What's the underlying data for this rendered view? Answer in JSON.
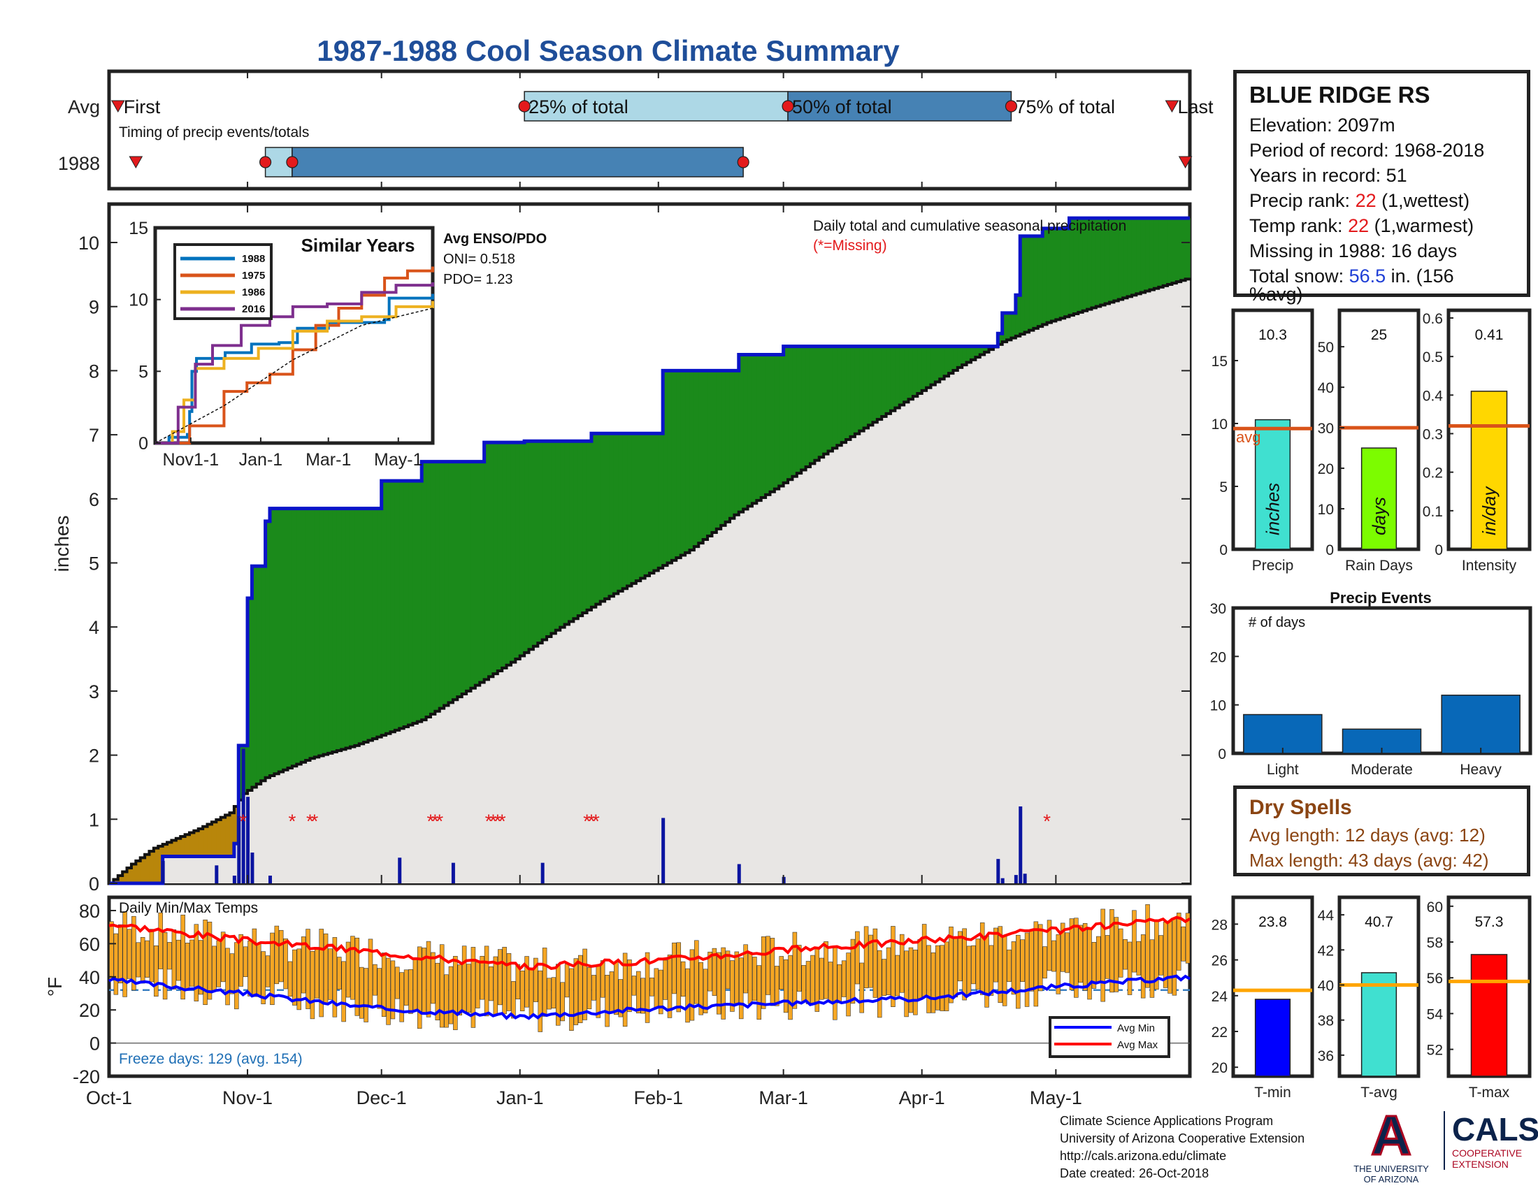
{
  "page": {
    "title": "1987-1988 Cool Season Climate Summary"
  },
  "colors": {
    "title_blue": "#1f4e99",
    "cum_line": "#0a14c8",
    "surplus_green": "#1b8a1b",
    "deficit_brown": "#b8860b",
    "avg_fill": "#e8e6e4",
    "avg_step": "#111111",
    "daily_bar": "#0a14a0",
    "missing_star": "#e31a1c",
    "temp_bar": "#f5a623",
    "avg_min_line": "#0000ff",
    "avg_max_line": "#ff0000",
    "freeze_line": "#3a7fc1"
  },
  "timing": {
    "row_labels": [
      "Avg",
      "1988"
    ],
    "caption": "Timing of precip events/totals",
    "avg_labels": [
      "First",
      "25% of total",
      "50% of total",
      "75% of total",
      "Last"
    ],
    "avg_first_day": 2,
    "avg_25_day": 93,
    "avg_50_day": 152,
    "avg_75_day": 202,
    "avg_last_day": 238,
    "yr_first_day": 6,
    "yr_25_day": 35,
    "yr_50_day": 41,
    "yr_75_day": 142,
    "yr_last_day": 241,
    "light_color": "#add8e6",
    "dark_color": "#4682b4"
  },
  "station": {
    "name": "BLUE RIDGE RS",
    "elevation": "Elevation: 2097m",
    "period": "Period of record: 1968-2018",
    "years": "Years in record: 51",
    "precip_rank_label": "Precip rank: ",
    "precip_rank_value": "22",
    "precip_rank_note": " (1,wettest)",
    "temp_rank_label": "Temp rank: ",
    "temp_rank_value": "22",
    "temp_rank_note": " (1,warmest)",
    "missing": "Missing in 1988: 16 days",
    "snow_label": "Total snow: ",
    "snow_value": "56.5",
    "snow_rest": " in. (156",
    "snow_rest2": "%avg)"
  },
  "main_chart": {
    "ylabel": "inches",
    "yticks": [
      0,
      1,
      2,
      3,
      4,
      5,
      6,
      7,
      8,
      9,
      10
    ],
    "annotation": "Daily total and cumulative seasonal precipitation",
    "missing_note": "(*=Missing)",
    "enso_head": "Avg ENSO/PDO",
    "oni": "ONI= 0.518",
    "pdo": "PDO= 1.23"
  },
  "similar_years": {
    "title": "Similar Years",
    "yticks": [
      0,
      5,
      10,
      15
    ],
    "xtick_labels": [
      "Nov1-1",
      "Jan-1",
      "Mar-1",
      "May-1"
    ],
    "legend": [
      "1988",
      "1975",
      "1986",
      "2016"
    ],
    "colors": [
      "#0072bd",
      "#d95319",
      "#edb120",
      "#7e2f8e"
    ]
  },
  "temps": {
    "label": "Daily Min/Max Temps",
    "ylabel": "°F",
    "yticks": [
      -20,
      0,
      20,
      40,
      60,
      80
    ],
    "freeze_note": "Freeze days: 129 (avg. 154)",
    "legend_min": "Avg Min",
    "legend_max": "Avg Max",
    "freeze_level": 32
  },
  "x_axis": {
    "labels": [
      "Oct-1",
      "Nov-1",
      "Dec-1",
      "Jan-1",
      "Feb-1",
      "Mar-1",
      "Apr-1",
      "May-1"
    ],
    "days": [
      0,
      31,
      61,
      92,
      123,
      151,
      182,
      212
    ]
  },
  "small_bars": {
    "precip": {
      "label": "Precip",
      "value": 10.3,
      "value_text": "10.3",
      "avg": 9.6,
      "avg_text": "avg",
      "unit": "inches",
      "ylim": [
        0,
        19
      ],
      "yticks": [
        0,
        5,
        10,
        15
      ],
      "color": "#40e0d0"
    },
    "rain_days": {
      "label": "Rain Days",
      "value": 25,
      "value_text": "25",
      "avg": 30,
      "unit": "days",
      "ylim": [
        0,
        59
      ],
      "yticks": [
        0,
        10,
        20,
        30,
        40,
        50
      ],
      "color": "#7cfc00"
    },
    "intensity": {
      "label": "Intensity",
      "value": 0.41,
      "value_text": "0.41",
      "avg": 0.32,
      "unit": "in/day",
      "ylim": [
        0,
        0.62
      ],
      "yticks": [
        0,
        0.1,
        0.2,
        0.3,
        0.4,
        0.5,
        0.6
      ],
      "color": "#ffd700"
    }
  },
  "precip_events": {
    "title": "Precip Events",
    "ylabel_note": "# of days",
    "categories": [
      "Light",
      "Moderate",
      "Heavy"
    ],
    "values": [
      8,
      5,
      12
    ],
    "ylim": [
      0,
      30
    ],
    "yticks": [
      0,
      10,
      20,
      30
    ],
    "color": "#0868b8"
  },
  "dry_spells": {
    "title": "Dry Spells",
    "avg_length": "Avg length: 12 days (avg: 12)",
    "max_length": "Max length: 43 days (avg: 42)"
  },
  "temp_bars": {
    "tmin": {
      "label": "T-min",
      "value": 23.8,
      "value_text": "23.8",
      "avg": 24.3,
      "ylim": [
        19.5,
        29.5
      ],
      "yticks": [
        20,
        22,
        24,
        26,
        28
      ],
      "color": "#0000ff"
    },
    "tavg": {
      "label": "T-avg",
      "value": 40.7,
      "value_text": "40.7",
      "avg": 40.0,
      "ylim": [
        34.8,
        45
      ],
      "yticks": [
        36,
        38,
        40,
        42,
        44
      ],
      "color": "#40e0d0"
    },
    "tmax": {
      "label": "T-max",
      "value": 57.3,
      "value_text": "57.3",
      "avg": 55.8,
      "ylim": [
        50.5,
        60.5
      ],
      "yticks": [
        52,
        54,
        56,
        58,
        60
      ],
      "color": "#ff0000"
    }
  },
  "credits": {
    "line1": "Climate Science Applications Program",
    "line2": "University of Arizona Cooperative Extension",
    "line3": "http://cals.arizona.edu/climate",
    "line4": " Date created: 26-Oct-2018"
  },
  "logos": {
    "ua_letter": "A",
    "ua_line1": "THE UNIVERSITY",
    "ua_line2": "OF ARIZONA",
    "cals_big": "CALS",
    "cals_line1": "COOPERATIVE",
    "cals_line2": "EXTENSION"
  },
  "chart_data": [
    {
      "type": "area",
      "name": "cumulative_precip",
      "title": "Daily total and cumulative seasonal precipitation",
      "ylabel": "inches",
      "x_unit": "day of season (Oct-1 = 0)",
      "xlim": [
        0,
        242
      ],
      "ylim": [
        0,
        10.6
      ],
      "cumulative_1988_steps": [
        [
          0,
          0
        ],
        [
          12,
          0
        ],
        [
          12,
          0.42
        ],
        [
          28,
          0.42
        ],
        [
          28,
          0.62
        ],
        [
          29,
          0.62
        ],
        [
          29,
          2.15
        ],
        [
          31,
          2.15
        ],
        [
          31,
          4.45
        ],
        [
          32,
          4.45
        ],
        [
          32,
          4.95
        ],
        [
          35,
          4.95
        ],
        [
          35,
          5.65
        ],
        [
          36,
          5.65
        ],
        [
          36,
          5.85
        ],
        [
          61,
          5.85
        ],
        [
          61,
          6.28
        ],
        [
          65,
          6.28
        ],
        [
          65,
          6.28
        ],
        [
          70,
          6.28
        ],
        [
          70,
          6.58
        ],
        [
          84,
          6.58
        ],
        [
          84,
          6.88
        ],
        [
          93,
          6.88
        ],
        [
          93,
          6.9
        ],
        [
          108,
          6.9
        ],
        [
          108,
          7.02
        ],
        [
          124,
          7.02
        ],
        [
          124,
          8.0
        ],
        [
          141,
          8.0
        ],
        [
          141,
          8.25
        ],
        [
          151,
          8.25
        ],
        [
          151,
          8.38
        ],
        [
          181,
          8.38
        ],
        [
          181,
          8.38
        ],
        [
          199,
          8.38
        ],
        [
          199,
          8.58
        ],
        [
          200,
          8.58
        ],
        [
          200,
          8.9
        ],
        [
          203,
          8.9
        ],
        [
          203,
          9.18
        ],
        [
          204,
          9.18
        ],
        [
          204,
          10.1
        ],
        [
          209,
          10.1
        ],
        [
          209,
          10.22
        ],
        [
          215,
          10.22
        ],
        [
          215,
          10.38
        ],
        [
          242,
          10.38
        ]
      ],
      "average_cumulative": [
        [
          0,
          0
        ],
        [
          5,
          0.3
        ],
        [
          10,
          0.55
        ],
        [
          20,
          0.85
        ],
        [
          27,
          1.1
        ],
        [
          30,
          1.4
        ],
        [
          35,
          1.65
        ],
        [
          45,
          1.95
        ],
        [
          55,
          2.15
        ],
        [
          70,
          2.55
        ],
        [
          80,
          3.0
        ],
        [
          90,
          3.45
        ],
        [
          100,
          3.95
        ],
        [
          110,
          4.4
        ],
        [
          120,
          4.8
        ],
        [
          130,
          5.2
        ],
        [
          140,
          5.75
        ],
        [
          150,
          6.2
        ],
        [
          160,
          6.7
        ],
        [
          170,
          7.15
        ],
        [
          180,
          7.6
        ],
        [
          190,
          8.05
        ],
        [
          200,
          8.45
        ],
        [
          210,
          8.75
        ],
        [
          220,
          8.98
        ],
        [
          230,
          9.2
        ],
        [
          242,
          9.45
        ]
      ],
      "daily_precip": [
        [
          12,
          0.35
        ],
        [
          24,
          0.28
        ],
        [
          28,
          0.12
        ],
        [
          29,
          1.05
        ],
        [
          30,
          2.1
        ],
        [
          31,
          1.35
        ],
        [
          32,
          0.48
        ],
        [
          36,
          0.12
        ],
        [
          65,
          0.4
        ],
        [
          77,
          0.32
        ],
        [
          97,
          0.32
        ],
        [
          124,
          1.02
        ],
        [
          141,
          0.3
        ],
        [
          151,
          0.1
        ],
        [
          199,
          0.38
        ],
        [
          200,
          0.08
        ],
        [
          203,
          0.13
        ],
        [
          204,
          1.2
        ],
        [
          205,
          0.15
        ]
      ],
      "missing_days": [
        30,
        41,
        45,
        46,
        72,
        73,
        74,
        85,
        86,
        87,
        88,
        107,
        108,
        109,
        210
      ]
    },
    {
      "type": "line",
      "name": "similar_years",
      "title": "Similar Years",
      "x_labels": [
        "Nov1-1",
        "Jan-1",
        "Mar-1",
        "May-1"
      ],
      "ylim": [
        0,
        15
      ],
      "series": [
        {
          "name": "1988",
          "values": [
            [
              0,
              0
            ],
            [
              12,
              0.4
            ],
            [
              28,
              0.6
            ],
            [
              30,
              2.2
            ],
            [
              32,
              5.0
            ],
            [
              36,
              5.9
            ],
            [
              61,
              6.3
            ],
            [
              84,
              6.9
            ],
            [
              108,
              7.0
            ],
            [
              124,
              8.0
            ],
            [
              151,
              8.4
            ],
            [
              200,
              8.6
            ],
            [
              204,
              10.1
            ],
            [
              242,
              10.4
            ]
          ]
        },
        {
          "name": "1975",
          "values": [
            [
              0,
              0
            ],
            [
              30,
              1.2
            ],
            [
              60,
              3.6
            ],
            [
              80,
              4.2
            ],
            [
              100,
              4.8
            ],
            [
              120,
              6.5
            ],
            [
              140,
              8.2
            ],
            [
              160,
              9.4
            ],
            [
              180,
              10.3
            ],
            [
              200,
              11.5
            ],
            [
              220,
              12.0
            ],
            [
              242,
              12.3
            ]
          ]
        },
        {
          "name": "1986",
          "values": [
            [
              0,
              0
            ],
            [
              15,
              0.8
            ],
            [
              25,
              3.0
            ],
            [
              35,
              5.2
            ],
            [
              60,
              5.9
            ],
            [
              90,
              6.6
            ],
            [
              120,
              7.8
            ],
            [
              150,
              8.5
            ],
            [
              180,
              8.8
            ],
            [
              210,
              9.5
            ],
            [
              242,
              9.9
            ]
          ]
        },
        {
          "name": "2016",
          "values": [
            [
              0,
              0
            ],
            [
              20,
              2.5
            ],
            [
              35,
              5.5
            ],
            [
              50,
              6.8
            ],
            [
              75,
              8.2
            ],
            [
              100,
              8.8
            ],
            [
              120,
              9.5
            ],
            [
              150,
              9.7
            ],
            [
              180,
              10.5
            ],
            [
              210,
              11.0
            ],
            [
              242,
              11.2
            ]
          ]
        },
        {
          "name": "average",
          "values": [
            [
              0,
              0
            ],
            [
              60,
              2.6
            ],
            [
              120,
              5.8
            ],
            [
              180,
              8.2
            ],
            [
              242,
              9.4
            ]
          ]
        }
      ]
    },
    {
      "type": "bar",
      "name": "daily_temps",
      "title": "Daily Min/Max Temps",
      "ylabel": "°F",
      "ylim": [
        -20,
        88
      ],
      "avg_min": [
        [
          0,
          38
        ],
        [
          30,
          30
        ],
        [
          60,
          21
        ],
        [
          92,
          16
        ],
        [
          123,
          21
        ],
        [
          151,
          24
        ],
        [
          182,
          27
        ],
        [
          212,
          34
        ],
        [
          242,
          40
        ]
      ],
      "avg_max": [
        [
          0,
          72
        ],
        [
          30,
          62
        ],
        [
          60,
          55
        ],
        [
          92,
          46
        ],
        [
          123,
          50
        ],
        [
          151,
          56
        ],
        [
          182,
          62
        ],
        [
          212,
          68
        ],
        [
          242,
          75
        ]
      ],
      "freeze_days": 129,
      "freeze_days_avg": 154
    },
    {
      "type": "bar",
      "name": "season_summary_bars",
      "categories": [
        "Precip",
        "Rain Days",
        "Intensity"
      ],
      "values": [
        10.3,
        25,
        0.41
      ],
      "averages": [
        9.6,
        30,
        0.32
      ]
    },
    {
      "type": "bar",
      "name": "precip_events",
      "title": "Precip Events",
      "categories": [
        "Light",
        "Moderate",
        "Heavy"
      ],
      "values": [
        8,
        5,
        12
      ],
      "ylim": [
        0,
        30
      ]
    },
    {
      "type": "bar",
      "name": "temperature_summary",
      "categories": [
        "T-min",
        "T-avg",
        "T-max"
      ],
      "values": [
        23.8,
        40.7,
        57.3
      ],
      "averages": [
        24.3,
        40.0,
        55.8
      ]
    }
  ]
}
